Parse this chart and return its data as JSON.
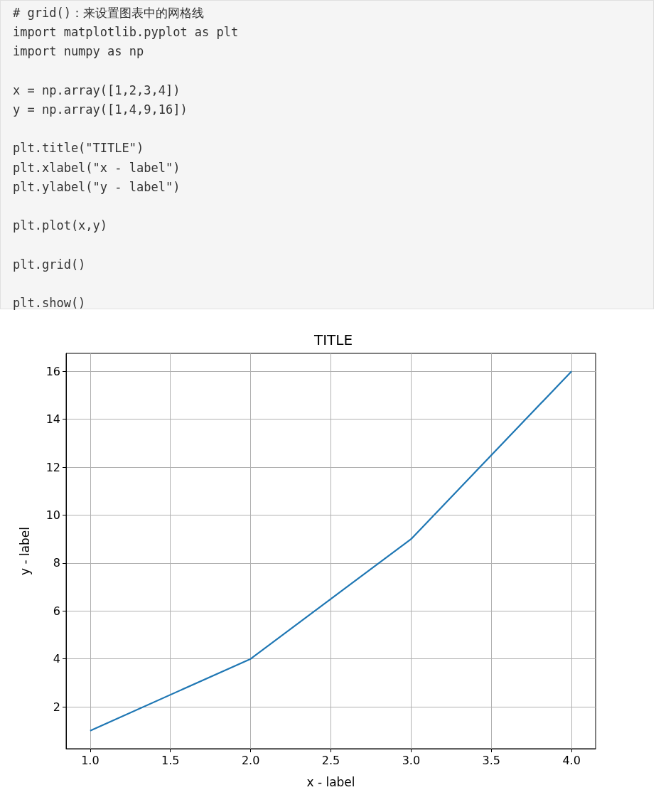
{
  "chart_data": {
    "type": "line",
    "title": "TITLE",
    "xlabel": "x - label",
    "ylabel": "y - label",
    "annotations": [
      "# grid()：来设置图表中的网格线\nimport matplotlib.pyplot as plt\nimport numpy as np\n\nx = np.array([1,2,3,4])\ny = np.array([1,4,9,16])\n\nplt.title(\"TITLE\")\nplt.xlabel(\"x - label\")\nplt.ylabel(\"y - label\")\n\nplt.plot(x,y)\n\nplt.grid()\n\nplt.show()"
    ],
    "x": [
      1,
      2,
      3,
      4
    ],
    "series": [
      {
        "color": "#1f77b4",
        "values": [
          1,
          4,
          9,
          16
        ]
      }
    ],
    "xlim": [
      0.85,
      4.15
    ],
    "ylim": [
      0.25,
      16.75
    ],
    "xticks": [
      {
        "value": 1,
        "label": "1.0"
      },
      {
        "value": 1.5,
        "label": "1.5"
      },
      {
        "value": 2,
        "label": "2.0"
      },
      {
        "value": 2.5,
        "label": "2.5"
      },
      {
        "value": 3,
        "label": "3.0"
      },
      {
        "value": 3.5,
        "label": "3.5"
      },
      {
        "value": 4,
        "label": "4.0"
      }
    ],
    "yticks": [
      2,
      4,
      6,
      8,
      10,
      12,
      14,
      16
    ],
    "grid": true
  }
}
